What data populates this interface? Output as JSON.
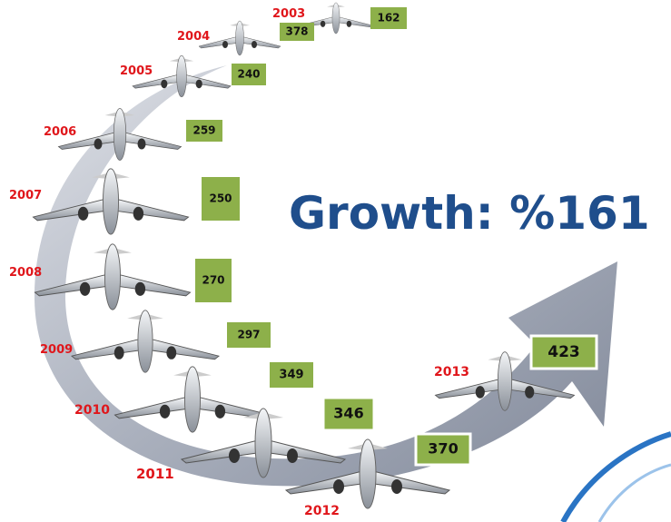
{
  "title": "Growth: %161",
  "items": [
    {
      "year": "2003",
      "value": "162"
    },
    {
      "year": "2004",
      "value": "378"
    },
    {
      "year": "2005",
      "value": "240"
    },
    {
      "year": "2006",
      "value": "259"
    },
    {
      "year": "2007",
      "value": "250"
    },
    {
      "year": "2008",
      "value": "270"
    },
    {
      "year": "2009",
      "value": "297"
    },
    {
      "year": "2010",
      "value": "349"
    },
    {
      "year": "2011",
      "value": "346"
    },
    {
      "year": "2012",
      "value": "370"
    },
    {
      "year": "2013",
      "value": "423"
    }
  ]
}
